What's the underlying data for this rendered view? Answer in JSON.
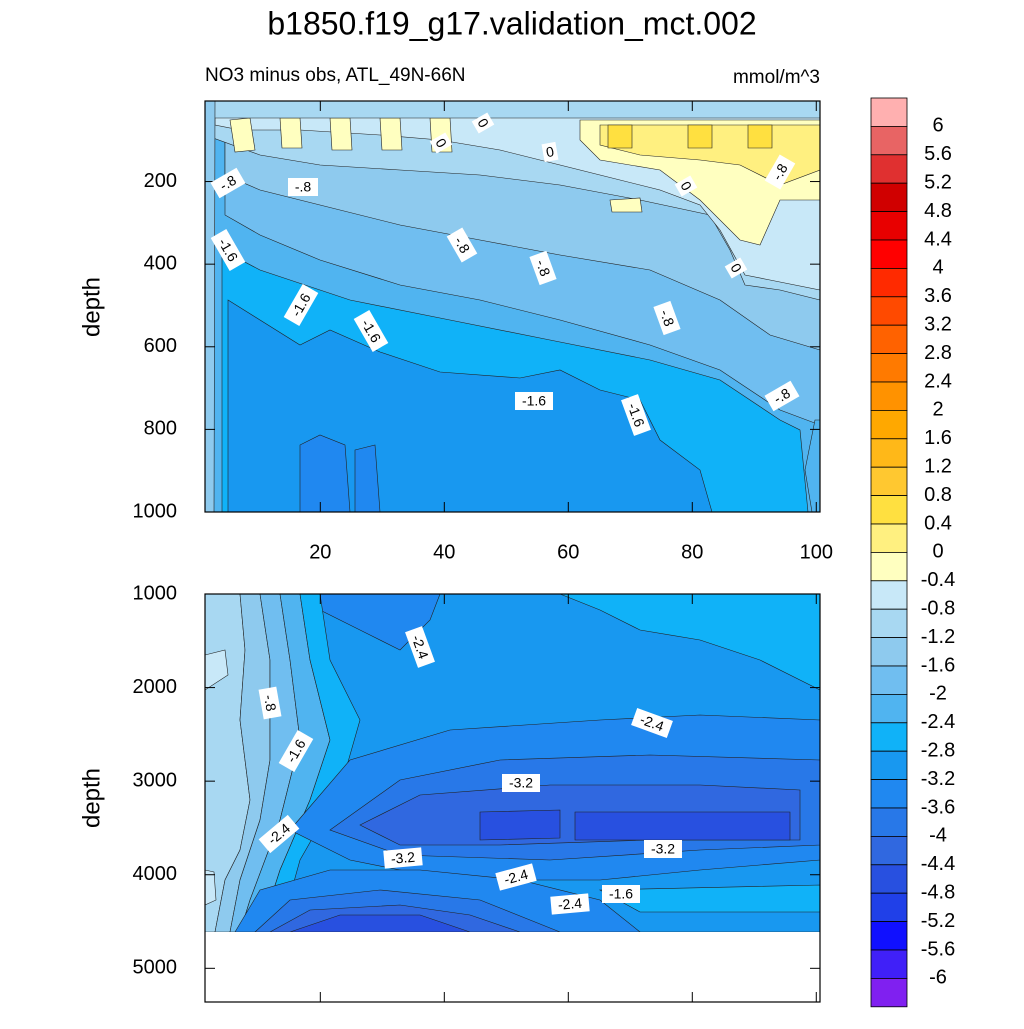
{
  "chart_data": [
    {
      "type": "contour",
      "title": "b1850.f19_g17.validation_mct.002",
      "subtitle": "NO3 minus obs, ATL_49N-66N",
      "units": "mmol/m^3",
      "ylabel": "depth",
      "xlim": [
        1.4,
        100.6
      ],
      "xticks": [
        20,
        40,
        60,
        80,
        100
      ],
      "ylim": [
        5,
        1000
      ],
      "yticks": [
        200,
        400,
        600,
        800,
        1000
      ],
      "contour_labels": [
        {
          "value": 0,
          "label": "0"
        },
        {
          "value": 0,
          "label": "0"
        },
        {
          "value": 0,
          "label": "0"
        },
        {
          "value": -0.8,
          "label": "-.8"
        },
        {
          "value": -0.8,
          "label": "-.8"
        },
        {
          "value": 0,
          "label": "0"
        },
        {
          "value": -0.8,
          "label": "-.8"
        },
        {
          "value": -1.6,
          "label": "-1.6"
        },
        {
          "value": -0.8,
          "label": "-.8"
        },
        {
          "value": -0.8,
          "label": "-.8"
        },
        {
          "value": 0,
          "label": "0"
        },
        {
          "value": -1.6,
          "label": "-1.6"
        },
        {
          "value": -1.6,
          "label": "-1.6"
        },
        {
          "value": -0.8,
          "label": "-.8"
        },
        {
          "value": -1.6,
          "label": "-1.6"
        },
        {
          "value": -1.6,
          "label": "-1.6"
        },
        {
          "value": -0.8,
          "label": "-.8"
        }
      ]
    },
    {
      "type": "contour",
      "ylabel": "depth",
      "ylim": [
        1000,
        5360
      ],
      "yticks": [
        1000,
        2000,
        3000,
        4000,
        5000
      ],
      "contour_labels": [
        {
          "value": -2.4,
          "label": "-2.4"
        },
        {
          "value": -0.8,
          "label": "-.8"
        },
        {
          "value": -1.6,
          "label": "-1.6"
        },
        {
          "value": -2.4,
          "label": "-2.4"
        },
        {
          "value": -3.2,
          "label": "-3.2"
        },
        {
          "value": -2.4,
          "label": "-2.4"
        },
        {
          "value": -3.2,
          "label": "-3.2"
        },
        {
          "value": -3.2,
          "label": "-3.2"
        },
        {
          "value": -2.4,
          "label": "-2.4"
        },
        {
          "value": -1.6,
          "label": "-1.6"
        },
        {
          "value": -2.4,
          "label": "-2.4"
        }
      ]
    },
    {
      "type": "colorbar",
      "levels": [
        6,
        5.6,
        5.2,
        4.8,
        4.4,
        4,
        3.6,
        3.2,
        2.8,
        2.4,
        2,
        1.6,
        1.2,
        0.8,
        0.4,
        0,
        -0.4,
        -0.8,
        -1.2,
        -1.6,
        -2,
        -2.4,
        -2.8,
        -3.2,
        -3.6,
        -4,
        -4.4,
        -4.8,
        -5.2,
        -5.6,
        -6
      ],
      "colors": [
        "#ffb0b0",
        "#e86464",
        "#e03030",
        "#d00000",
        "#e80000",
        "#ff0000",
        "#ff2a00",
        "#ff4a00",
        "#ff6200",
        "#ff7a00",
        "#ff9200",
        "#ffa800",
        "#ffb818",
        "#ffc830",
        "#ffe040",
        "#fff080",
        "#ffffc0",
        "#c8e8f8",
        "#a8d8f2",
        "#8ecaee",
        "#70bef0",
        "#50b4f0",
        "#10b2f8",
        "#1898f0",
        "#2088f0",
        "#2878e8",
        "#3068e0",
        "#2850e0",
        "#2040e8",
        "#1010ff",
        "#4020f8",
        "#8020f0"
      ]
    }
  ]
}
